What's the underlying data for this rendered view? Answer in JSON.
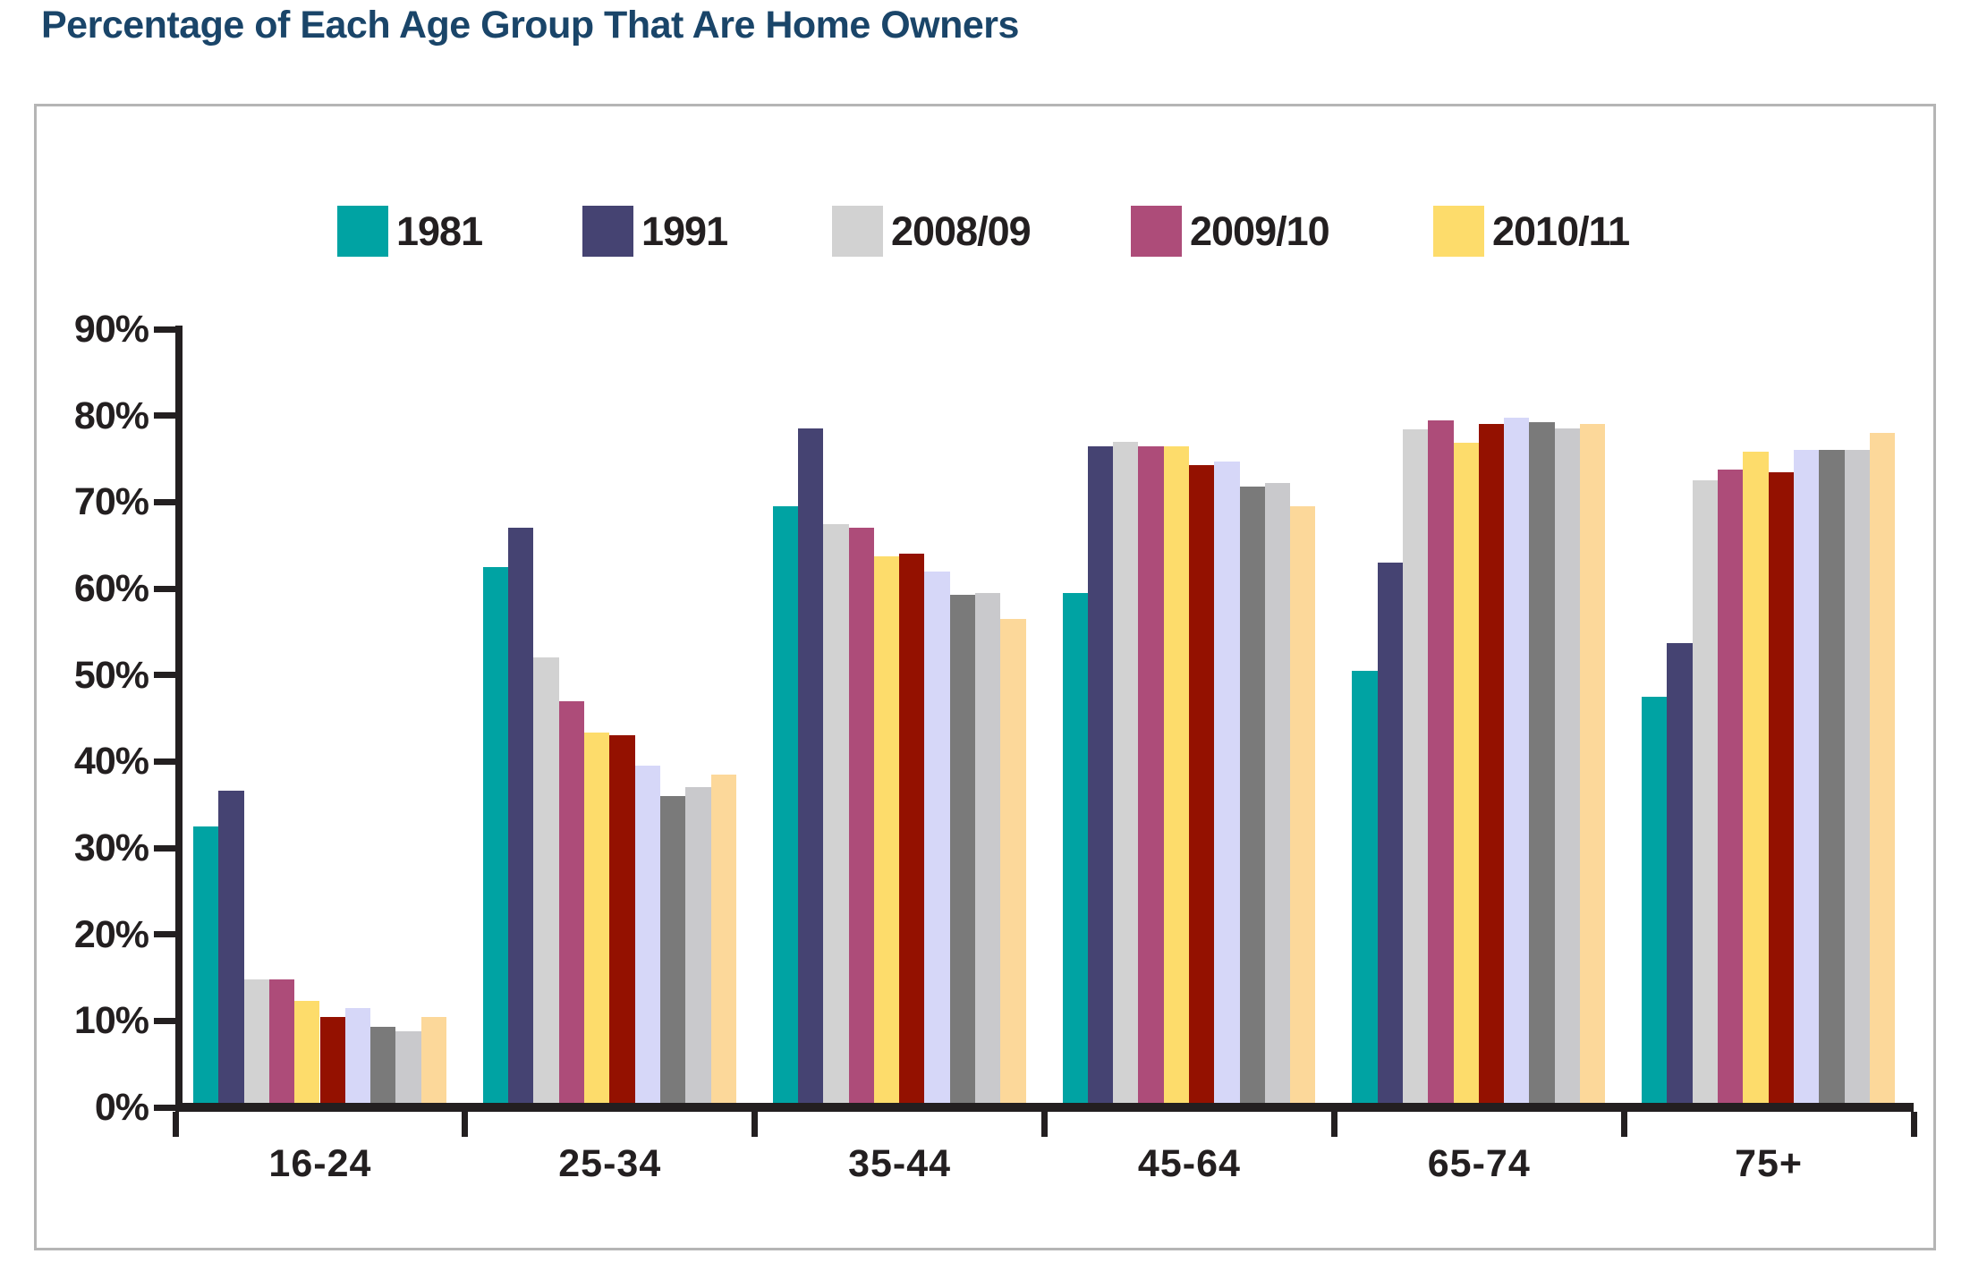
{
  "chart_data": {
    "type": "bar",
    "title": "Percentage of Each Age Group That Are Home Owners",
    "categories": [
      "16-24",
      "25-34",
      "35-44",
      "45-64",
      "65-74",
      "75+"
    ],
    "series": [
      {
        "name": "1981",
        "color": "#00A3A3",
        "in_legend": true,
        "values": [
          32.5,
          62.5,
          69.5,
          59.5,
          50.5,
          47.5
        ]
      },
      {
        "name": "1991",
        "color": "#454372",
        "in_legend": true,
        "values": [
          36.6,
          67.0,
          78.5,
          76.5,
          63.0,
          53.7
        ]
      },
      {
        "name": "2008/09",
        "color": "#D2D2D2",
        "in_legend": true,
        "values": [
          14.8,
          52.0,
          67.5,
          77.0,
          78.4,
          72.5
        ]
      },
      {
        "name": "2009/10",
        "color": "#AD4C79",
        "in_legend": true,
        "values": [
          14.8,
          47.0,
          67.0,
          76.5,
          79.5,
          73.8
        ]
      },
      {
        "name": "2010/11",
        "color": "#FDDC6B",
        "in_legend": true,
        "values": [
          12.3,
          43.3,
          63.7,
          76.4,
          76.9,
          75.8
        ]
      },
      {
        "name": "",
        "color": "#941100",
        "in_legend": false,
        "values": [
          10.4,
          43.0,
          64.0,
          74.3,
          79.0,
          73.5
        ]
      },
      {
        "name": "",
        "color": "#D6D7F8",
        "in_legend": false,
        "values": [
          11.5,
          39.5,
          62.0,
          74.7,
          79.8,
          76.0
        ]
      },
      {
        "name": "",
        "color": "#7A7A7A",
        "in_legend": false,
        "values": [
          9.3,
          36.0,
          59.3,
          71.8,
          79.2,
          76.0
        ]
      },
      {
        "name": "",
        "color": "#C9C9CC",
        "in_legend": false,
        "values": [
          8.8,
          37.0,
          59.5,
          72.2,
          78.5,
          76.0
        ]
      },
      {
        "name": "",
        "color": "#FCD89A",
        "in_legend": false,
        "values": [
          10.4,
          38.5,
          56.5,
          69.5,
          79.0,
          78.0
        ]
      }
    ],
    "xlabel": "",
    "ylabel": "",
    "y_ticks": [
      "0%",
      "10%",
      "20%",
      "30%",
      "40%",
      "50%",
      "60%",
      "70%",
      "80%",
      "90%"
    ],
    "ylim": [
      0,
      90
    ],
    "grid": false,
    "legend_position": "top"
  },
  "colors": {
    "title_text": "#1A4569",
    "axis_and_labels": "#231F20",
    "panel_border": "#B5B5B5",
    "background": "#FFFFFF"
  }
}
